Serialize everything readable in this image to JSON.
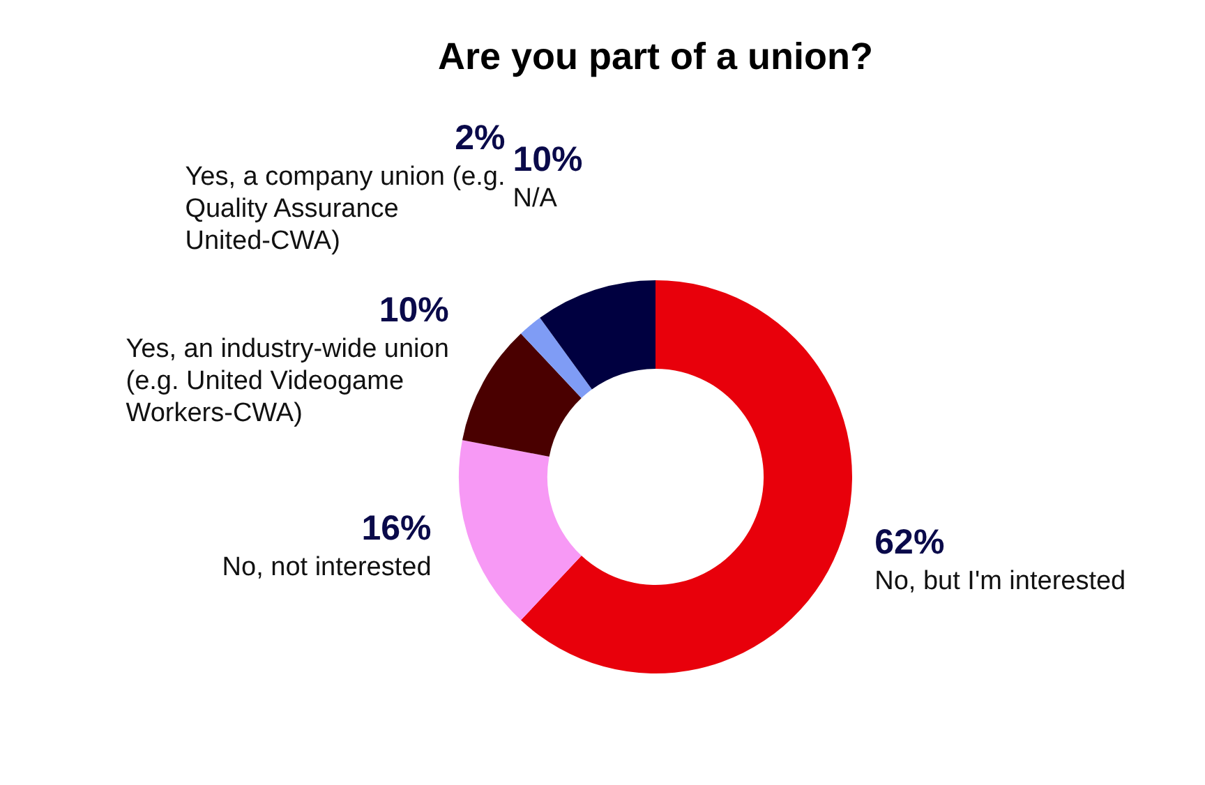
{
  "chart_data": {
    "type": "donut",
    "title": "Are you part of a union?",
    "categories": [
      "No, but I'm interested",
      "No, not interested",
      "Yes, an industry-wide union (e.g. United Videogame Workers-CWA)",
      "Yes, a company union (e.g. Quality Assurance United-CWA)",
      "N/A"
    ],
    "values": [
      62,
      16,
      10,
      2,
      10
    ],
    "colors": [
      "#e8000b",
      "#f799f5",
      "#4a0000",
      "#7f9cf5",
      "#000040"
    ],
    "value_labels": [
      "62%",
      "16%",
      "10%",
      "2%",
      "10%"
    ],
    "legend": false
  }
}
